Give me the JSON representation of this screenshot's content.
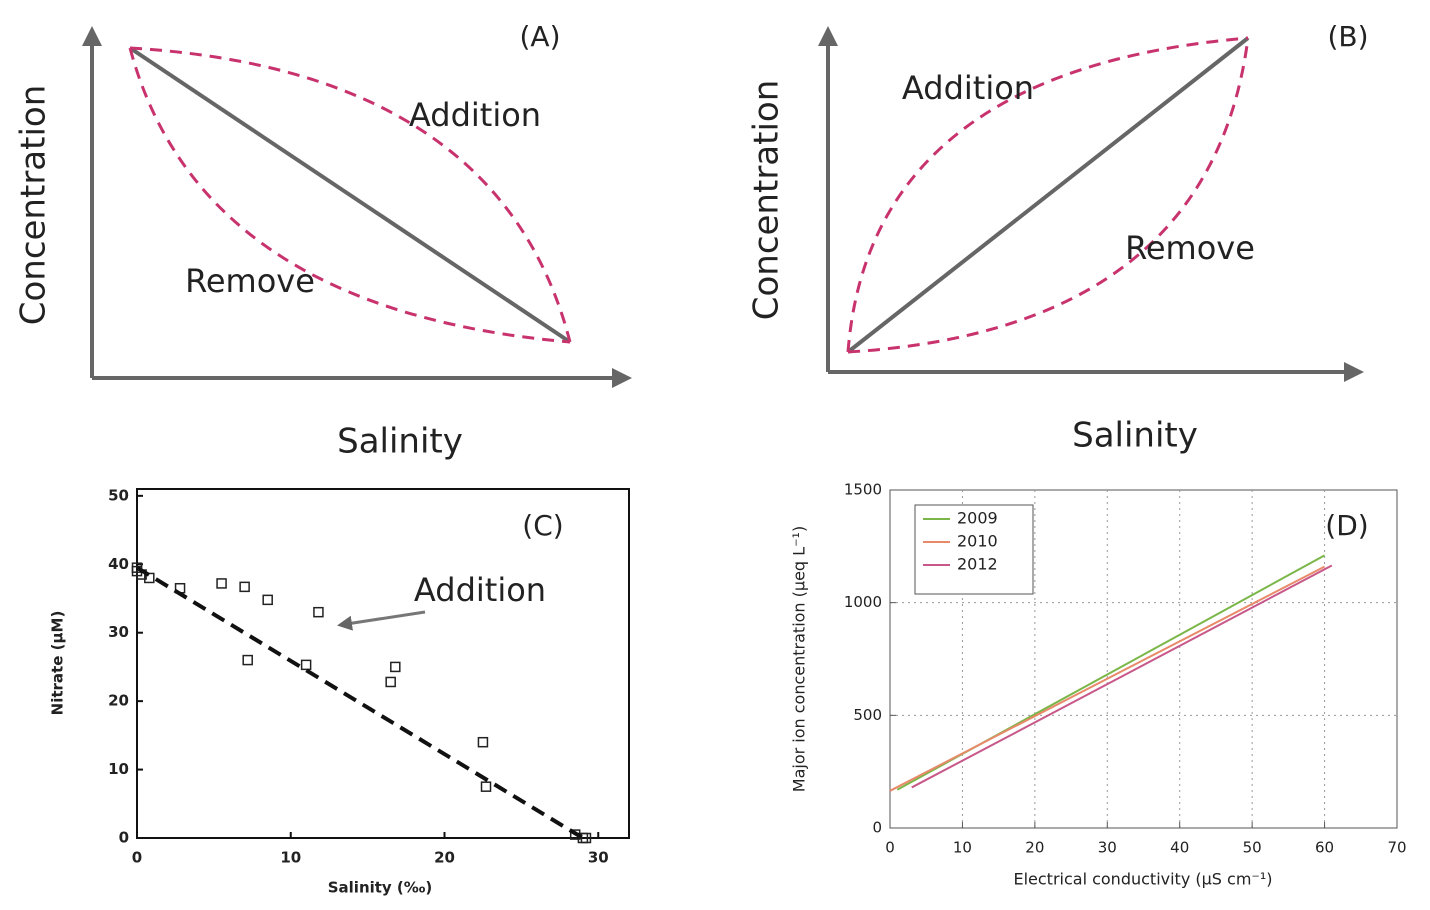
{
  "chart_data": [
    {
      "type": "schematic",
      "title": "(A)",
      "xlabel": "Salinity",
      "ylabel": "Concentration",
      "annotations": [
        "Addition",
        "Remove"
      ]
    },
    {
      "type": "schematic",
      "title": "(B)",
      "xlabel": "Salinity",
      "ylabel": "Concentration",
      "annotations": [
        "Addition",
        "Remove"
      ]
    },
    {
      "type": "scatter",
      "title": "(C)",
      "xlabel": "Salinity (‰)",
      "ylabel": "Nitrate (μM)",
      "annotations": [
        "Addition"
      ],
      "xlim": [
        0,
        32
      ],
      "ylim": [
        0,
        51
      ],
      "xticks": [
        0,
        10,
        20,
        30
      ],
      "yticks": [
        0,
        10,
        20,
        30,
        40,
        50
      ],
      "series": [
        {
          "marker": "square",
          "color": "#222222",
          "x": [
            0,
            0,
            0.3,
            0.8,
            2.8,
            5.5,
            7,
            8.5,
            11.8,
            7.2,
            11,
            16.5,
            16.8,
            22.5,
            22.7,
            28.5,
            29,
            29.2
          ],
          "values": [
            39.5,
            39,
            38.5,
            38,
            36.5,
            37.2,
            36.7,
            34.8,
            33,
            26,
            25.3,
            22.8,
            25,
            14,
            7.5,
            0.5,
            0,
            0
          ]
        },
        {
          "style": "dashed",
          "color": "#111111",
          "x": [
            0,
            29
          ],
          "values": [
            39.5,
            0
          ]
        }
      ]
    },
    {
      "type": "line",
      "title": "(D)",
      "xlabel": "Electrical conductivity (µS cm⁻¹)",
      "ylabel": "Major ion concentration (µeq L⁻¹)",
      "xlim": [
        0,
        70
      ],
      "ylim": [
        0,
        1500
      ],
      "xticks": [
        0,
        10,
        20,
        30,
        40,
        50,
        60,
        70
      ],
      "yticks": [
        0,
        500,
        1000,
        1500
      ],
      "grid": true,
      "legend": "upper left",
      "series": [
        {
          "name": "2009",
          "color": "#7ab648",
          "x": [
            1,
            60
          ],
          "values": [
            170,
            1210
          ]
        },
        {
          "name": "2010",
          "color": "#e8896a",
          "x": [
            0,
            60
          ],
          "values": [
            165,
            1160
          ]
        },
        {
          "name": "2012",
          "color": "#c8578a",
          "x": [
            3,
            61
          ],
          "values": [
            180,
            1165
          ]
        }
      ]
    }
  ]
}
